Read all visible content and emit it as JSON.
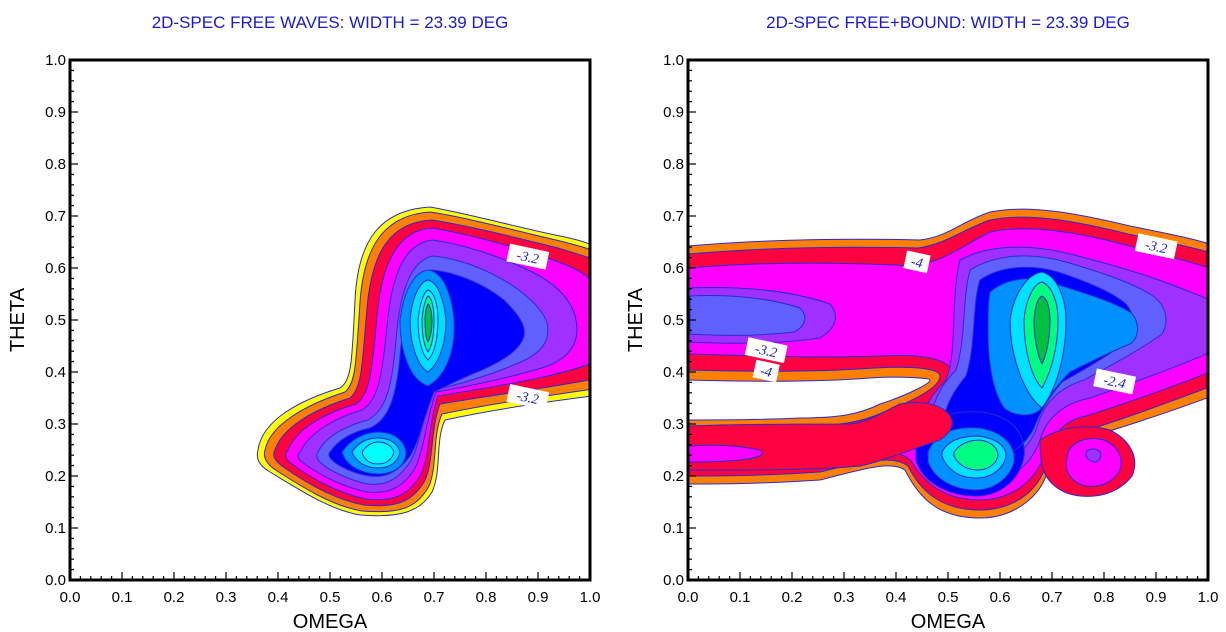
{
  "chart_data": [
    {
      "type": "contour",
      "title": "2D-SPEC FREE WAVES: WIDTH = 23.39  DEG",
      "xlabel": "OMEGA",
      "ylabel": "THETA",
      "xlim": [
        0.0,
        1.0
      ],
      "ylim": [
        0.0,
        1.0
      ],
      "xticks": [
        "0.0",
        "0.1",
        "0.2",
        "0.3",
        "0.4",
        "0.5",
        "0.6",
        "0.7",
        "0.8",
        "0.9",
        "1.0"
      ],
      "yticks": [
        "0.0",
        "0.1",
        "0.2",
        "0.3",
        "0.4",
        "0.5",
        "0.6",
        "0.7",
        "0.8",
        "0.9",
        "1.0"
      ],
      "contour_labels": [
        {
          "text": "-3.2",
          "x": 0.88,
          "y": 0.62
        },
        {
          "text": "-3.2",
          "x": 0.88,
          "y": 0.35
        }
      ],
      "peaks": [
        {
          "omega": 0.68,
          "theta": 0.5
        },
        {
          "omega": 0.57,
          "theta": 0.24
        }
      ],
      "levels_colors": [
        "#ffff00",
        "#ff8000",
        "#ff0040",
        "#ff00ff",
        "#a030ff",
        "#6060ff",
        "#0000ff",
        "#0090ff",
        "#00e0ff",
        "#00ff80"
      ]
    },
    {
      "type": "contour",
      "title": "2D-SPEC FREE+BOUND: WIDTH = 23.39  DEG",
      "xlabel": "OMEGA",
      "ylabel": "THETA",
      "xlim": [
        0.0,
        1.0
      ],
      "ylim": [
        0.0,
        1.0
      ],
      "xticks": [
        "0.0",
        "0.1",
        "0.2",
        "0.3",
        "0.4",
        "0.5",
        "0.6",
        "0.7",
        "0.8",
        "0.9",
        "1.0"
      ],
      "yticks": [
        "0.0",
        "0.1",
        "0.2",
        "0.3",
        "0.4",
        "0.5",
        "0.6",
        "0.7",
        "0.8",
        "0.9",
        "1.0"
      ],
      "contour_labels": [
        {
          "text": "-4",
          "x": 0.44,
          "y": 0.61
        },
        {
          "text": "-3.2",
          "x": 0.9,
          "y": 0.64
        },
        {
          "text": "-3.2",
          "x": 0.15,
          "y": 0.44
        },
        {
          "text": "-4",
          "x": 0.15,
          "y": 0.4
        },
        {
          "text": "-2.4",
          "x": 0.82,
          "y": 0.38
        }
      ],
      "peaks": [
        {
          "omega": 0.68,
          "theta": 0.5
        },
        {
          "omega": 0.57,
          "theta": 0.24
        },
        {
          "omega": 0.78,
          "theta": 0.24
        }
      ],
      "levels_colors": [
        "#ff8000",
        "#ff0040",
        "#ff00ff",
        "#a030ff",
        "#6060ff",
        "#0000ff",
        "#0090ff",
        "#00e0ff",
        "#00ff80"
      ]
    }
  ]
}
